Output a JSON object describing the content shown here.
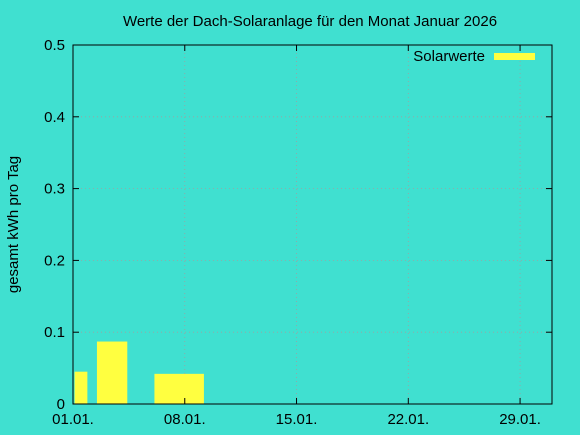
{
  "chart_data": {
    "type": "bar",
    "title": "Werte der Dach-Solaranlage für den Monat Januar 2026",
    "xlabel": "",
    "ylabel": "gesamt kWh pro Tag",
    "x_ticks": [
      "01.01.",
      "08.01.",
      "15.01.",
      "22.01.",
      "29.01."
    ],
    "x_tick_days": [
      1,
      8,
      15,
      22,
      29
    ],
    "xlim": [
      1,
      31
    ],
    "ylim": [
      0,
      0.5
    ],
    "y_ticks": [
      0,
      0.1,
      0.2,
      0.3,
      0.4,
      0.5
    ],
    "grid": true,
    "legend_position": "top-right",
    "series": [
      {
        "name": "Solarwerte",
        "color": "#ffff40",
        "bars": [
          {
            "from_day": 1.1,
            "to_day": 1.9,
            "value": 0.045
          },
          {
            "from_day": 2.5,
            "to_day": 4.4,
            "value": 0.087
          },
          {
            "from_day": 6.1,
            "to_day": 9.2,
            "value": 0.042
          }
        ]
      }
    ]
  }
}
